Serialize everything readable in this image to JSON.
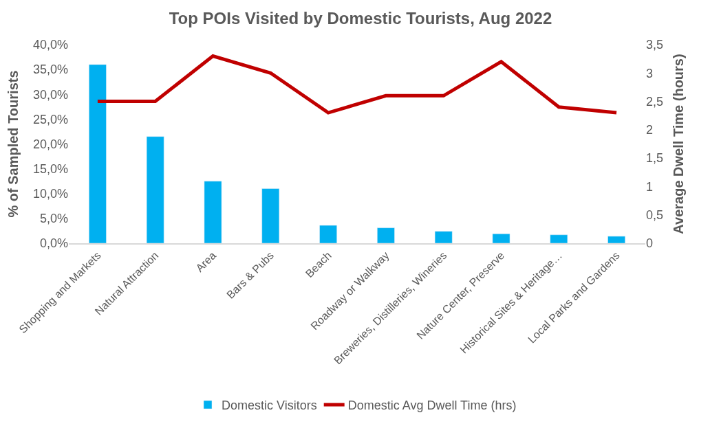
{
  "chart_data": {
    "type": "bar",
    "title": "Top POIs Visited by Domestic Tourists, Aug 2022",
    "ylabel": "% of Sampled Tourists",
    "y2label": "Average Dwell Time (hours)",
    "categories": [
      "Shopping and Markets",
      "Natural Attraction",
      "Area",
      "Bars & Pubs",
      "Beach",
      "Roadway or Walkway",
      "Breweries, Distilleries, Wineries",
      "Nature Center, Preserve",
      "Historical Sites & Heritage…",
      "Local Parks and Gardens"
    ],
    "series": [
      {
        "name": "Domestic Visitors",
        "color": "#00b0f0",
        "values": [
          36.0,
          21.5,
          12.5,
          11.0,
          3.6,
          3.1,
          2.4,
          1.9,
          1.7,
          1.4
        ]
      },
      {
        "name": "Domestic Avg Dwell Time (hrs)",
        "type": "line",
        "axis": "y2",
        "color": "#c00000",
        "values": [
          2.5,
          2.5,
          3.3,
          3.0,
          2.3,
          2.6,
          2.6,
          3.2,
          2.4,
          2.3
        ]
      }
    ],
    "ylim": [
      0,
      40
    ],
    "yticks": [
      {
        "value": 0,
        "label": "0,0%"
      },
      {
        "value": 5,
        "label": "5,0%"
      },
      {
        "value": 10,
        "label": "10,0%"
      },
      {
        "value": 15,
        "label": "15,0%"
      },
      {
        "value": 20,
        "label": "20,0%"
      },
      {
        "value": 25,
        "label": "25,0%"
      },
      {
        "value": 30,
        "label": "30,0%"
      },
      {
        "value": 35,
        "label": "35,0%"
      },
      {
        "value": 40,
        "label": "40,0%"
      }
    ],
    "y2lim": [
      0,
      3.5
    ],
    "y2ticks": [
      0,
      {
        "value": 0.5,
        "label": "0,5"
      },
      1,
      {
        "value": 1.5,
        "label": "1,5"
      },
      2,
      {
        "value": 2.5,
        "label": "2,5"
      },
      3,
      {
        "value": 3.5,
        "label": "3,5"
      }
    ],
    "legend": "bottom"
  }
}
